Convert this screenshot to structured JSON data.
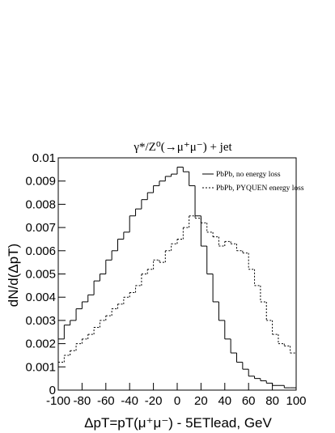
{
  "chart_data": {
    "type": "histogram",
    "title": "γ*/Z⁰(→μ⁺μ⁻) + jet",
    "x_label": "ΔpT=pT(μ⁺μ⁻) - 5ETlead, GeV",
    "y_label": "dN/d(ΔpT)",
    "bins": [
      -100,
      -95,
      -90,
      -85,
      -80,
      -75,
      -70,
      -65,
      -60,
      -55,
      -50,
      -45,
      -40,
      -35,
      -30,
      -25,
      -20,
      -15,
      -10,
      -5,
      0,
      5,
      10,
      15,
      20,
      25,
      30,
      35,
      40,
      45,
      50,
      55,
      60,
      65,
      70,
      75,
      80,
      85,
      90,
      95,
      100
    ],
    "series": [
      {
        "name": "PbPb, no energy loss",
        "color": "#000000",
        "dash": "none",
        "values": [
          0.0022,
          0.0028,
          0.003,
          0.0035,
          0.0038,
          0.0041,
          0.0047,
          0.005,
          0.0056,
          0.006,
          0.0065,
          0.0068,
          0.0075,
          0.0078,
          0.0082,
          0.0085,
          0.0088,
          0.009,
          0.0092,
          0.0093,
          0.0096,
          0.0094,
          0.0088,
          0.0075,
          0.0062,
          0.005,
          0.0038,
          0.003,
          0.0022,
          0.0016,
          0.0012,
          0.0009,
          0.0006,
          0.0005,
          0.0004,
          0.0003,
          0.0002,
          0.0002,
          0.0001,
          0.0001
        ]
      },
      {
        "name": "PbPb, PYQUEN energy loss",
        "color": "#000000",
        "dash": "2,2",
        "values": [
          0.0012,
          0.0015,
          0.0017,
          0.002,
          0.0022,
          0.0024,
          0.0027,
          0.003,
          0.0032,
          0.0035,
          0.0037,
          0.004,
          0.0042,
          0.0045,
          0.005,
          0.0052,
          0.0056,
          0.0055,
          0.006,
          0.0063,
          0.0065,
          0.007,
          0.0075,
          0.0074,
          0.0072,
          0.0068,
          0.0066,
          0.0062,
          0.0064,
          0.0063,
          0.006,
          0.0059,
          0.0052,
          0.0045,
          0.0038,
          0.003,
          0.0024,
          0.002,
          0.0019,
          0.0016
        ]
      }
    ],
    "xlim": [
      -100,
      100
    ],
    "ylim": [
      0,
      0.01
    ],
    "xticks": [
      -100,
      -80,
      -60,
      -40,
      -20,
      0,
      20,
      40,
      60,
      80,
      100
    ],
    "yticks": [
      0,
      0.001,
      0.002,
      0.003,
      0.004,
      0.005,
      0.006,
      0.007,
      0.008,
      0.009,
      0.01
    ],
    "legend": "upper right"
  }
}
